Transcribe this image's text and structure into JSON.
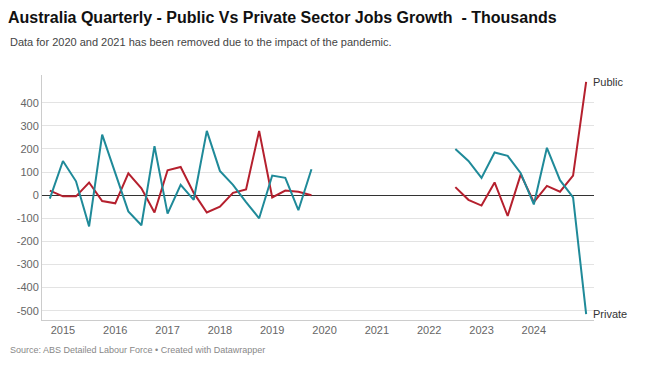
{
  "chart_data": {
    "type": "line",
    "title": "Australia Quarterly - Public Vs Private Sector Jobs Growth  - Thousands",
    "subtitle": "Data for 2020 and 2021 has been removed due to the impact of the pandemic.",
    "source": "Source: ABS Detailed Labour Force • Created with Datawrapper",
    "x": [
      2014.75,
      2015,
      2015.25,
      2015.5,
      2015.75,
      2016,
      2016.25,
      2016.5,
      2016.75,
      2017,
      2017.25,
      2017.5,
      2017.75,
      2018,
      2018.25,
      2018.5,
      2018.75,
      2019,
      2019.25,
      2019.5,
      2019.75,
      2020,
      2020.25,
      2020.5,
      2020.75,
      2021,
      2021.25,
      2021.5,
      2021.75,
      2022,
      2022.25,
      2022.5,
      2022.75,
      2023,
      2023.25,
      2023.5,
      2023.75,
      2024,
      2024.25,
      2024.5,
      2024.75,
      2025
    ],
    "series": [
      {
        "name": "Public",
        "color": "#b5202e",
        "values": [
          20,
          -5,
          -5,
          55,
          -25,
          -35,
          95,
          30,
          -75,
          108,
          122,
          10,
          -75,
          -50,
          10,
          25,
          278,
          -10,
          20,
          15,
          0,
          null,
          null,
          null,
          null,
          null,
          null,
          null,
          null,
          null,
          null,
          35,
          -20,
          -45,
          55,
          -90,
          90,
          -30,
          40,
          15,
          85,
          490
        ]
      },
      {
        "name": "Private",
        "color": "#1f8a99",
        "values": [
          -15,
          148,
          60,
          -135,
          262,
          100,
          -70,
          -130,
          212,
          -80,
          45,
          -20,
          278,
          105,
          45,
          -30,
          -100,
          85,
          75,
          -65,
          112,
          null,
          null,
          null,
          null,
          null,
          null,
          null,
          null,
          null,
          null,
          200,
          148,
          75,
          185,
          170,
          95,
          -40,
          205,
          65,
          -10,
          -515
        ]
      }
    ],
    "xlim": [
      2014.6,
      2025.15
    ],
    "xticks": [
      2015,
      2016,
      2017,
      2018,
      2019,
      2020,
      2021,
      2022,
      2023,
      2024
    ],
    "ylim": [
      -540,
      520
    ],
    "yticks": [
      -500,
      -400,
      -300,
      -200,
      -100,
      0,
      100,
      200,
      300,
      400
    ],
    "grid": true
  }
}
